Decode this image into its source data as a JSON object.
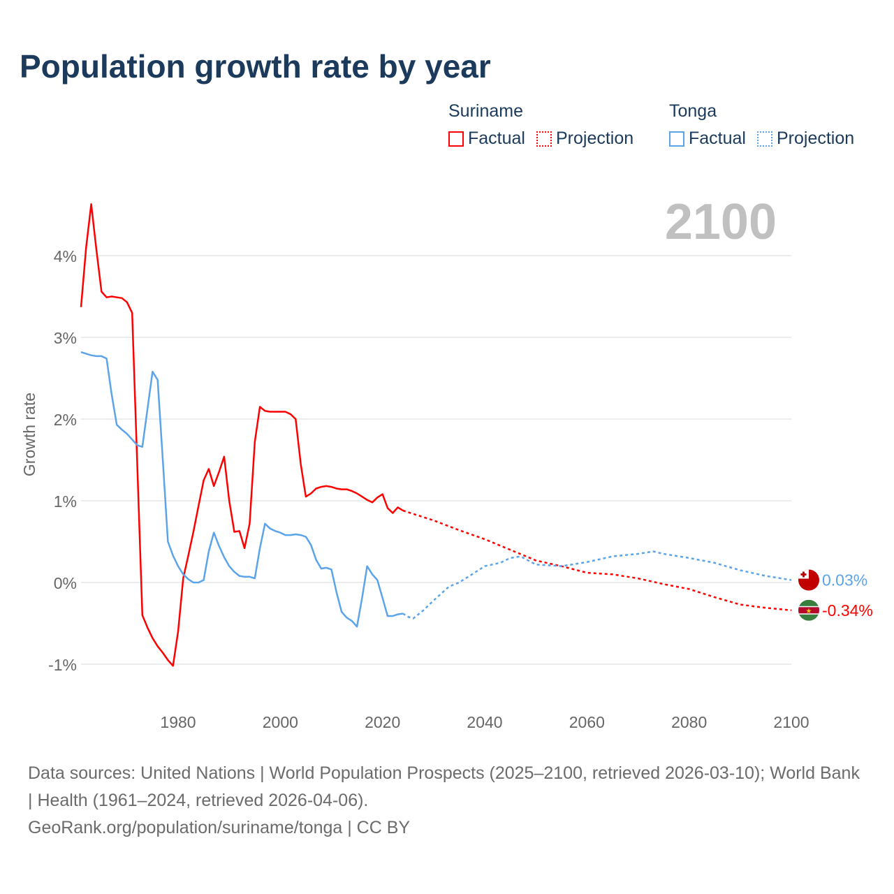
{
  "title": "Population growth rate by year",
  "legend": [
    {
      "group": "Suriname",
      "factual": "Factual",
      "projection": "Projection",
      "color": "#ff0000"
    },
    {
      "group": "Tonga",
      "factual": "Factual",
      "projection": "Projection",
      "color": "#5ba4ea"
    }
  ],
  "year_label": "2100",
  "sources": {
    "line1": "Data sources: United Nations | World Population Prospects (2025–2100, retrieved 2026-03-10); World Bank | Health (1961–2024, retrieved 2026-04-06).",
    "line2": "GeoRank.org/population/suriname/tonga | CC BY"
  },
  "chart_data": {
    "type": "line",
    "title": "Population growth rate by year",
    "xlabel": "",
    "ylabel": "Growth rate",
    "xlim": [
      1961,
      2100
    ],
    "ylim": [
      -1.5,
      4.8
    ],
    "x_ticks": [
      1980,
      2000,
      2020,
      2040,
      2060,
      2080,
      2100
    ],
    "y_ticks": [
      -1,
      0,
      1,
      2,
      3,
      4
    ],
    "y_tick_labels": [
      "-1%",
      "0%",
      "1%",
      "2%",
      "3%",
      "4%"
    ],
    "grid": true,
    "series": [
      {
        "name": "Suriname",
        "color": "#ff0000",
        "end_label": "-0.34%",
        "factual": {
          "x": [
            1961,
            1962,
            1963,
            1964,
            1965,
            1966,
            1967,
            1968,
            1969,
            1970,
            1971,
            1972,
            1973,
            1974,
            1975,
            1976,
            1977,
            1978,
            1979,
            1980,
            1981,
            1982,
            1983,
            1984,
            1985,
            1986,
            1987,
            1988,
            1989,
            1990,
            1991,
            1992,
            1993,
            1994,
            1995,
            1996,
            1997,
            1998,
            1999,
            2000,
            2001,
            2002,
            2003,
            2004,
            2005,
            2006,
            2007,
            2008,
            2009,
            2010,
            2011,
            2012,
            2013,
            2014,
            2015,
            2016,
            2017,
            2018,
            2019,
            2020,
            2021,
            2022,
            2023,
            2024
          ],
          "y": [
            3.37,
            4.1,
            4.63,
            4.08,
            3.56,
            3.49,
            3.5,
            3.49,
            3.48,
            3.43,
            3.3,
            1.45,
            -0.4,
            -0.55,
            -0.68,
            -0.78,
            -0.86,
            -0.95,
            -1.02,
            -0.6,
            0.05,
            0.33,
            0.62,
            0.94,
            1.25,
            1.39,
            1.18,
            1.35,
            1.54,
            1.0,
            0.62,
            0.63,
            0.42,
            0.72,
            1.72,
            2.15,
            2.1,
            2.09,
            2.09,
            2.09,
            2.09,
            2.06,
            2.0,
            1.45,
            1.05,
            1.09,
            1.15,
            1.17,
            1.18,
            1.17,
            1.15,
            1.14,
            1.14,
            1.12,
            1.09,
            1.05,
            1.01,
            0.98,
            1.04,
            1.08,
            0.91,
            0.85,
            0.92,
            0.88
          ]
        },
        "projection": {
          "x": [
            2024,
            2025,
            2030,
            2035,
            2040,
            2045,
            2050,
            2055,
            2060,
            2065,
            2070,
            2075,
            2080,
            2085,
            2090,
            2095,
            2100
          ],
          "y": [
            0.88,
            0.86,
            0.76,
            0.64,
            0.53,
            0.4,
            0.27,
            0.2,
            0.12,
            0.1,
            0.05,
            -0.02,
            -0.08,
            -0.18,
            -0.27,
            -0.31,
            -0.34
          ]
        }
      },
      {
        "name": "Tonga",
        "color": "#5ba4ea",
        "end_label": "0.03%",
        "factual": {
          "x": [
            1961,
            1962,
            1963,
            1964,
            1965,
            1966,
            1967,
            1968,
            1969,
            1970,
            1971,
            1972,
            1973,
            1974,
            1975,
            1976,
            1977,
            1978,
            1979,
            1980,
            1981,
            1982,
            1983,
            1984,
            1985,
            1986,
            1987,
            1988,
            1989,
            1990,
            1991,
            1992,
            1993,
            1994,
            1995,
            1996,
            1997,
            1998,
            1999,
            2000,
            2001,
            2002,
            2003,
            2004,
            2005,
            2006,
            2007,
            2008,
            2009,
            2010,
            2011,
            2012,
            2013,
            2014,
            2015,
            2016,
            2017,
            2018,
            2019,
            2020,
            2021,
            2022,
            2023,
            2024
          ],
          "y": [
            2.82,
            2.8,
            2.78,
            2.77,
            2.77,
            2.74,
            2.3,
            1.93,
            1.87,
            1.82,
            1.75,
            1.68,
            1.66,
            2.12,
            2.58,
            2.48,
            1.5,
            0.5,
            0.33,
            0.2,
            0.1,
            0.04,
            0.0,
            0.0,
            0.03,
            0.38,
            0.61,
            0.45,
            0.31,
            0.2,
            0.13,
            0.08,
            0.07,
            0.07,
            0.05,
            0.42,
            0.72,
            0.66,
            0.63,
            0.61,
            0.58,
            0.58,
            0.59,
            0.58,
            0.56,
            0.46,
            0.28,
            0.17,
            0.18,
            0.16,
            -0.12,
            -0.36,
            -0.43,
            -0.47,
            -0.54,
            -0.19,
            0.2,
            0.1,
            0.03,
            -0.19,
            -0.41,
            -0.41,
            -0.39,
            -0.38
          ]
        },
        "projection": {
          "x": [
            2024,
            2025,
            2026,
            2028,
            2030,
            2033,
            2035,
            2038,
            2040,
            2043,
            2045,
            2047,
            2050,
            2055,
            2060,
            2065,
            2070,
            2073,
            2075,
            2080,
            2085,
            2090,
            2095,
            2100
          ],
          "y": [
            -0.38,
            -0.42,
            -0.44,
            -0.34,
            -0.22,
            -0.05,
            0.0,
            0.12,
            0.2,
            0.24,
            0.3,
            0.32,
            0.22,
            0.2,
            0.25,
            0.32,
            0.35,
            0.38,
            0.35,
            0.3,
            0.24,
            0.15,
            0.08,
            0.03
          ]
        }
      }
    ]
  }
}
